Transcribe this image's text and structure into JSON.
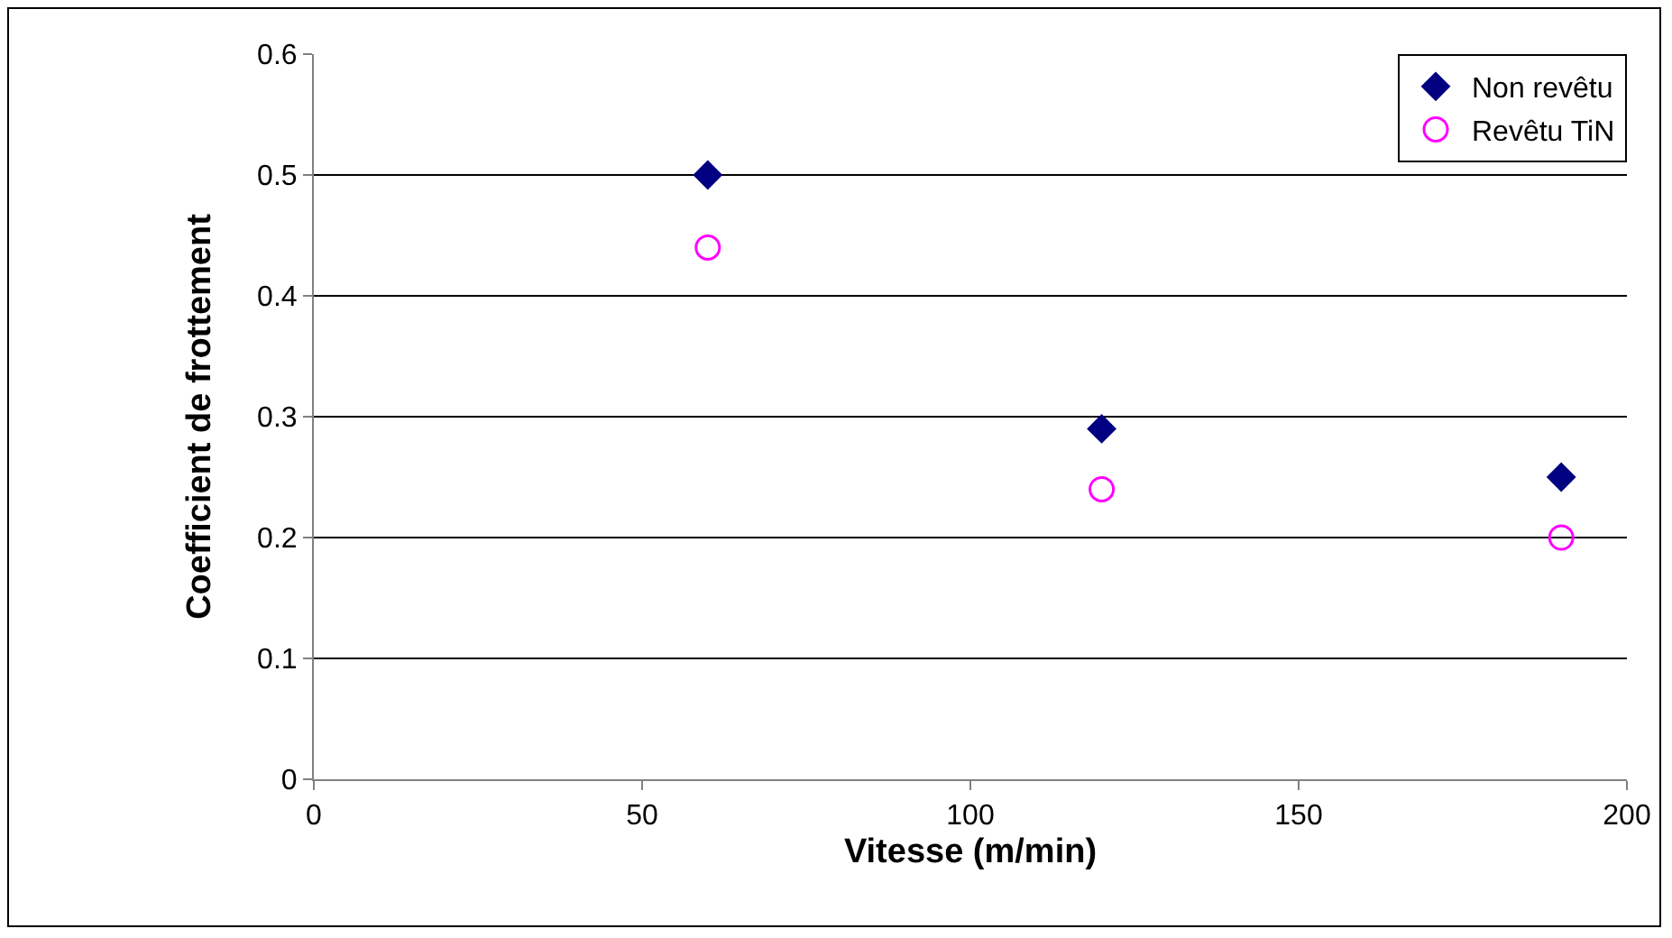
{
  "chart_data": {
    "type": "scatter",
    "xlabel": "Vitesse (m/min)",
    "ylabel": "Coefficient de frottement",
    "series": [
      {
        "name": "Non revêtu",
        "color": "#000080",
        "marker": "diamond",
        "x": [
          60,
          120,
          190
        ],
        "values": [
          0.5,
          0.29,
          0.25
        ]
      },
      {
        "name": "Revêtu TiN",
        "color": "#ff00ff",
        "marker": "circle-open",
        "x": [
          60,
          120,
          190
        ],
        "values": [
          0.44,
          0.24,
          0.2
        ]
      }
    ],
    "xlim": [
      0,
      200
    ],
    "xticks": [
      0,
      50,
      100,
      150,
      200
    ],
    "ylim": [
      0,
      0.6
    ],
    "yticks": [
      0,
      0.1,
      0.2,
      0.3,
      0.4,
      0.5,
      0.6
    ],
    "grid": "y",
    "legend": "top right"
  }
}
